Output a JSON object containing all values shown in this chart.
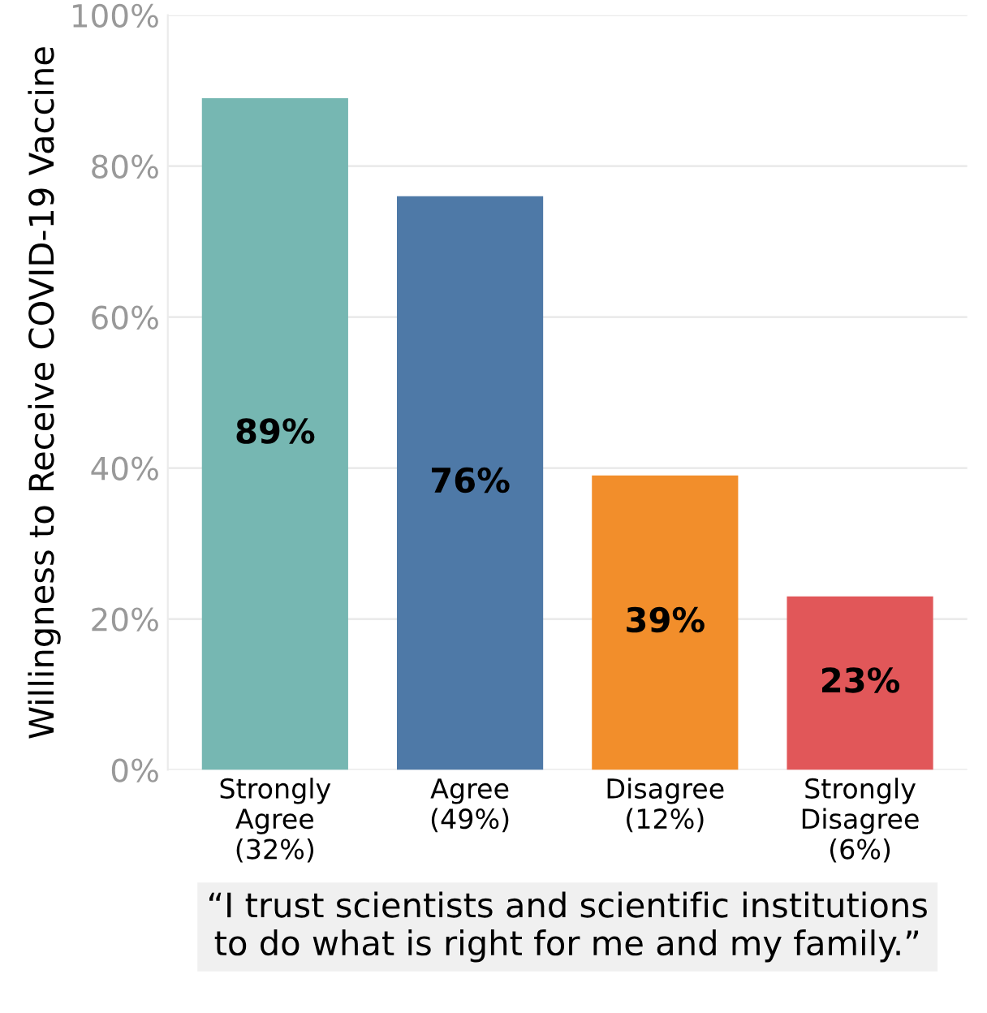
{
  "chart_data": {
    "type": "bar",
    "categories": [
      "Strongly\nAgree\n(32%)",
      "Agree\n(49%)",
      "Disagree\n(12%)",
      "Strongly\nDisagree\n(6%)"
    ],
    "values": [
      89,
      76,
      39,
      23
    ],
    "colors": [
      "#76b7b2",
      "#4e79a7",
      "#f28e2b",
      "#e15759"
    ],
    "value_labels": [
      "89%",
      "76%",
      "39%",
      "23%"
    ],
    "ylabel": "Willingness to Receive COVID-19 Vaccine",
    "xlabel": "“I trust scientists and scientific institutions\nto do what is right for me and my family.”",
    "ylim": [
      0,
      100
    ],
    "yticks": [
      {
        "value": 0,
        "label": "0%"
      },
      {
        "value": 20,
        "label": "20%"
      },
      {
        "value": 40,
        "label": "40%"
      },
      {
        "value": 60,
        "label": "60%"
      },
      {
        "value": 80,
        "label": "80%"
      },
      {
        "value": 100,
        "label": "100%"
      }
    ],
    "grid": "y",
    "legend": false
  }
}
